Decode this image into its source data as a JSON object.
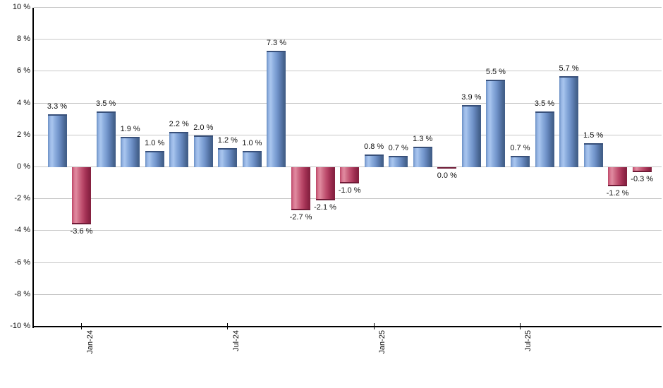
{
  "chart_data": {
    "type": "bar",
    "title": "",
    "xlabel": "",
    "ylabel": "",
    "legend_position": "none",
    "grid": true,
    "y_axis": {
      "min": -10,
      "max": 10,
      "step": 2,
      "tick_labels": [
        "10 %",
        "8 %",
        "6 %",
        "4 %",
        "2 %",
        "0 %",
        "-2 %",
        "-4 %",
        "-6 %",
        "-8 %",
        "-10 %"
      ]
    },
    "x_axis": {
      "tick_labels": [
        {
          "label": "Jan-24",
          "bar_index": 1
        },
        {
          "label": "Jul-24",
          "bar_index": 7
        },
        {
          "label": "Jan-25",
          "bar_index": 13
        },
        {
          "label": "Jul-25",
          "bar_index": 19
        }
      ]
    },
    "bars": [
      {
        "value": 3.3,
        "label": "3.3 %",
        "tone": "positive"
      },
      {
        "value": -3.6,
        "label": "-3.6 %",
        "tone": "negative"
      },
      {
        "value": 3.5,
        "label": "3.5 %",
        "tone": "positive"
      },
      {
        "value": 1.9,
        "label": "1.9 %",
        "tone": "positive"
      },
      {
        "value": 1.0,
        "label": "1.0 %",
        "tone": "positive"
      },
      {
        "value": 2.2,
        "label": "2.2 %",
        "tone": "positive"
      },
      {
        "value": 2.0,
        "label": "2.0 %",
        "tone": "positive"
      },
      {
        "value": 1.2,
        "label": "1.2 %",
        "tone": "positive"
      },
      {
        "value": 1.0,
        "label": "1.0 %",
        "tone": "positive"
      },
      {
        "value": 7.3,
        "label": "7.3 %",
        "tone": "positive"
      },
      {
        "value": -2.7,
        "label": "-2.7 %",
        "tone": "negative"
      },
      {
        "value": -2.1,
        "label": "-2.1 %",
        "tone": "negative"
      },
      {
        "value": -1.0,
        "label": "-1.0 %",
        "tone": "negative"
      },
      {
        "value": 0.8,
        "label": "0.8 %",
        "tone": "positive"
      },
      {
        "value": 0.7,
        "label": "0.7 %",
        "tone": "positive"
      },
      {
        "value": 1.3,
        "label": "1.3 %",
        "tone": "positive"
      },
      {
        "value": 0.0,
        "label": "0.0 %",
        "tone": "negative"
      },
      {
        "value": 3.9,
        "label": "3.9 %",
        "tone": "positive"
      },
      {
        "value": 5.5,
        "label": "5.5 %",
        "tone": "positive"
      },
      {
        "value": 0.7,
        "label": "0.7 %",
        "tone": "positive"
      },
      {
        "value": 3.5,
        "label": "3.5 %",
        "tone": "positive"
      },
      {
        "value": 5.7,
        "label": "5.7 %",
        "tone": "positive"
      },
      {
        "value": 1.5,
        "label": "1.5 %",
        "tone": "positive"
      },
      {
        "value": -1.2,
        "label": "-1.2 %",
        "tone": "negative"
      },
      {
        "value": -0.3,
        "label": "-0.3 %",
        "tone": "negative"
      }
    ],
    "colors": {
      "positive_light": "#a9c6ee",
      "positive_dark": "#405c86",
      "positive_edge": "#38507a",
      "negative_light": "#e08ba0",
      "negative_dark": "#85203f",
      "negative_edge": "#701b37",
      "gridline": "#c7c7c7",
      "axis": "#000000",
      "text": "#111111"
    }
  }
}
